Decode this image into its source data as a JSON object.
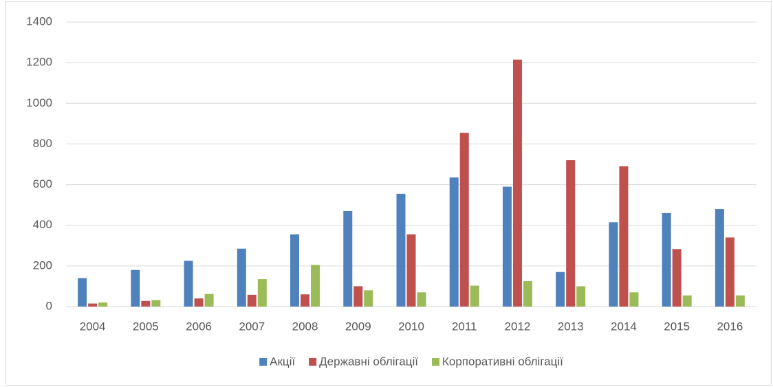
{
  "chart_data": {
    "type": "bar",
    "categories": [
      "2004",
      "2005",
      "2006",
      "2007",
      "2008",
      "2009",
      "2010",
      "2011",
      "2012",
      "2013",
      "2014",
      "2015",
      "2016"
    ],
    "series": [
      {
        "name": "Акції",
        "color": "#4f81bd",
        "values": [
          140,
          180,
          225,
          285,
          355,
          470,
          555,
          635,
          590,
          170,
          415,
          460,
          480
        ]
      },
      {
        "name": "Державні облігації",
        "color": "#c0504d",
        "values": [
          15,
          28,
          40,
          58,
          60,
          100,
          355,
          855,
          1215,
          720,
          690,
          283,
          340
        ]
      },
      {
        "name": "Корпоративні облігації",
        "color": "#9bbb59",
        "values": [
          20,
          32,
          62,
          135,
          205,
          80,
          70,
          103,
          125,
          100,
          70,
          55,
          55
        ]
      }
    ],
    "ylim": [
      0,
      1400
    ],
    "yticks": [
      0,
      200,
      400,
      600,
      800,
      1000,
      1200,
      1400
    ],
    "grid": true,
    "legend": "bottom"
  }
}
